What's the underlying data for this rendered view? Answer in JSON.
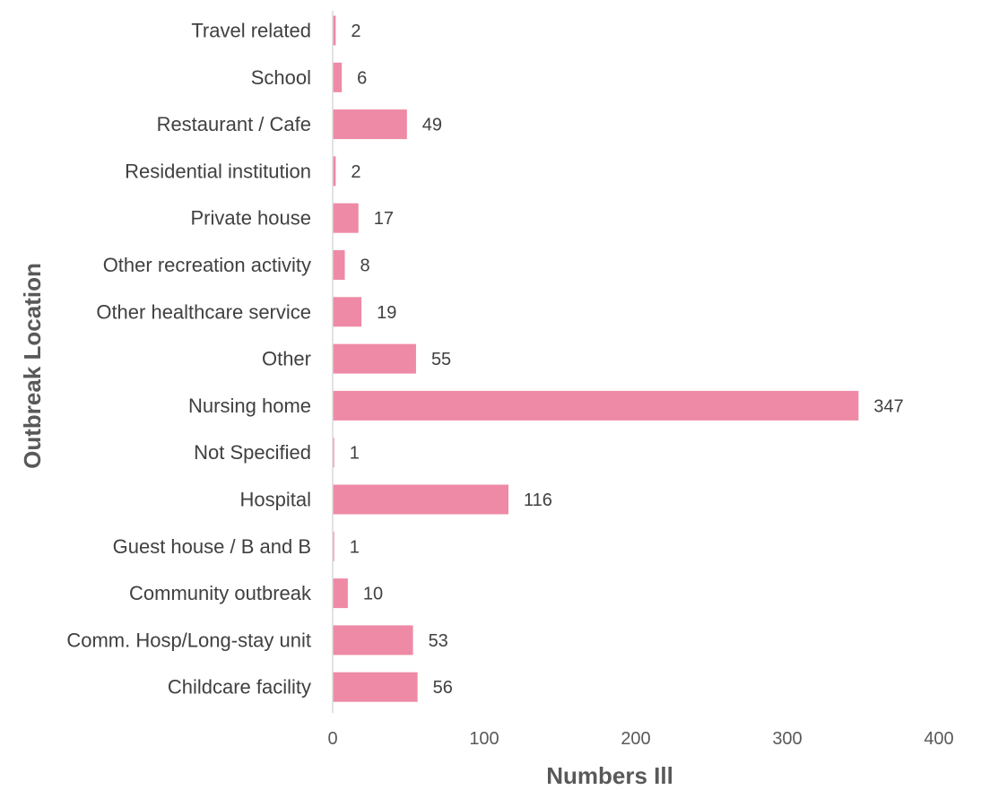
{
  "chart_data": {
    "type": "bar",
    "orientation": "horizontal",
    "categories": [
      "Travel related",
      "School",
      "Restaurant / Cafe",
      "Residential institution",
      "Private house",
      "Other recreation activity",
      "Other healthcare service",
      "Other",
      "Nursing home",
      "Not Specified",
      "Hospital",
      "Guest house / B and B",
      "Community outbreak",
      "Comm. Hosp/Long-stay unit",
      "Childcare facility"
    ],
    "values": [
      2,
      6,
      49,
      2,
      17,
      8,
      19,
      55,
      347,
      1,
      116,
      1,
      10,
      53,
      56
    ],
    "xlabel": "Numbers Ill",
    "ylabel": "Outbreak Location",
    "xlim": [
      0,
      400
    ],
    "xticks": [
      0,
      100,
      200,
      300,
      400
    ],
    "grid": false,
    "legend": "none",
    "bar_color": "#ee8aa5",
    "axis_color": "#d9d9d9"
  }
}
